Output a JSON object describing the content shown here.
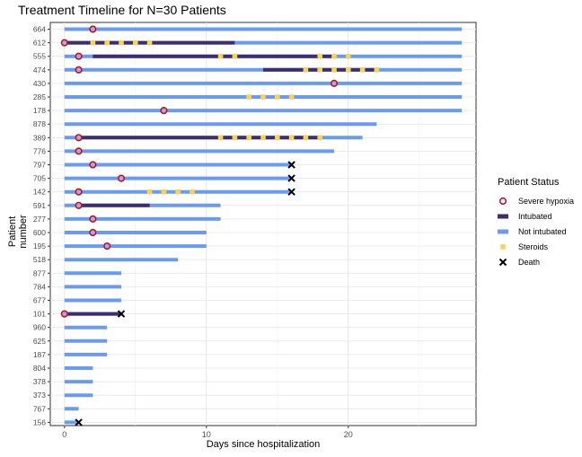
{
  "chart_data": {
    "type": "timeline",
    "title": "Treatment Timeline for N=30 Patients",
    "xlabel": "Days since hospitalization",
    "ylabel": "Patient\nnumber",
    "xlim": [
      -1,
      29
    ],
    "x_ticks": [
      0,
      10,
      20
    ],
    "grid": true,
    "legend": {
      "title": "Patient Status",
      "position": "right",
      "items": [
        {
          "key": "hypoxia",
          "label": "Severe hypoxia",
          "color": "#b2182b",
          "shape": "open-circle"
        },
        {
          "key": "intubated",
          "label": "Intubated",
          "color": "#3b2c73",
          "shape": "bar"
        },
        {
          "key": "not_intubated",
          "label": "Not intubated",
          "color": "#6a9bf2",
          "shape": "bar"
        },
        {
          "key": "steroids",
          "label": "Steroids",
          "color": "#f7d35a",
          "shape": "square"
        },
        {
          "key": "death",
          "label": "Death",
          "color": "#000000",
          "shape": "x"
        }
      ]
    },
    "patients": [
      {
        "id": "664",
        "end": 28,
        "intubated": [],
        "hypoxia": 2,
        "steroids": [],
        "death": null
      },
      {
        "id": "612",
        "end": 28,
        "intubated": [
          [
            0,
            12
          ]
        ],
        "hypoxia": 0,
        "steroids": [
          2,
          3,
          4,
          5,
          6
        ],
        "death": null
      },
      {
        "id": "555",
        "end": 28,
        "intubated": [
          [
            2,
            19
          ]
        ],
        "hypoxia": 1,
        "steroids": [
          11,
          12,
          18,
          19,
          20
        ],
        "death": null
      },
      {
        "id": "474",
        "end": 28,
        "intubated": [
          [
            14,
            22
          ]
        ],
        "hypoxia": 1,
        "steroids": [
          17,
          18,
          19,
          20,
          21,
          22
        ],
        "death": null
      },
      {
        "id": "430",
        "end": 28,
        "intubated": [],
        "hypoxia": 19,
        "steroids": [],
        "death": null
      },
      {
        "id": "285",
        "end": 28,
        "intubated": [],
        "hypoxia": null,
        "steroids": [
          13,
          14,
          15,
          16
        ],
        "death": null
      },
      {
        "id": "178",
        "end": 28,
        "intubated": [],
        "hypoxia": 7,
        "steroids": [],
        "death": null
      },
      {
        "id": "878",
        "end": 22,
        "intubated": [],
        "hypoxia": null,
        "steroids": [],
        "death": null
      },
      {
        "id": "389",
        "end": 21,
        "intubated": [
          [
            1,
            18
          ]
        ],
        "hypoxia": 1,
        "steroids": [
          11,
          12,
          13,
          14,
          15,
          16,
          17,
          18
        ],
        "death": null
      },
      {
        "id": "776",
        "end": 19,
        "intubated": [],
        "hypoxia": 1,
        "steroids": [],
        "death": null
      },
      {
        "id": "797",
        "end": 16,
        "intubated": [],
        "hypoxia": 2,
        "steroids": [],
        "death": 16
      },
      {
        "id": "705",
        "end": 16,
        "intubated": [],
        "hypoxia": 4,
        "steroids": [],
        "death": 16
      },
      {
        "id": "142",
        "end": 16,
        "intubated": [],
        "hypoxia": 1,
        "steroids": [
          6,
          7,
          8,
          9
        ],
        "death": 16
      },
      {
        "id": "591",
        "end": 11,
        "intubated": [
          [
            1,
            6
          ]
        ],
        "hypoxia": 1,
        "steroids": [],
        "death": null
      },
      {
        "id": "277",
        "end": 11,
        "intubated": [],
        "hypoxia": 2,
        "steroids": [],
        "death": null
      },
      {
        "id": "600",
        "end": 10,
        "intubated": [],
        "hypoxia": 2,
        "steroids": [],
        "death": null
      },
      {
        "id": "195",
        "end": 10,
        "intubated": [],
        "hypoxia": 3,
        "steroids": [],
        "death": null
      },
      {
        "id": "518",
        "end": 8,
        "intubated": [],
        "hypoxia": null,
        "steroids": [],
        "death": null
      },
      {
        "id": "877",
        "end": 4,
        "intubated": [],
        "hypoxia": null,
        "steroids": [],
        "death": null
      },
      {
        "id": "784",
        "end": 4,
        "intubated": [],
        "hypoxia": null,
        "steroids": [],
        "death": null
      },
      {
        "id": "677",
        "end": 4,
        "intubated": [],
        "hypoxia": null,
        "steroids": [],
        "death": null
      },
      {
        "id": "101",
        "end": 4,
        "intubated": [
          [
            0,
            4
          ]
        ],
        "hypoxia": 0,
        "steroids": [],
        "death": 4
      },
      {
        "id": "960",
        "end": 3,
        "intubated": [],
        "hypoxia": null,
        "steroids": [],
        "death": null
      },
      {
        "id": "625",
        "end": 3,
        "intubated": [],
        "hypoxia": null,
        "steroids": [],
        "death": null
      },
      {
        "id": "187",
        "end": 3,
        "intubated": [],
        "hypoxia": null,
        "steroids": [],
        "death": null
      },
      {
        "id": "804",
        "end": 2,
        "intubated": [],
        "hypoxia": null,
        "steroids": [],
        "death": null
      },
      {
        "id": "378",
        "end": 2,
        "intubated": [],
        "hypoxia": null,
        "steroids": [],
        "death": null
      },
      {
        "id": "373",
        "end": 2,
        "intubated": [],
        "hypoxia": null,
        "steroids": [],
        "death": null
      },
      {
        "id": "767",
        "end": 1,
        "intubated": [],
        "hypoxia": null,
        "steroids": [],
        "death": null
      },
      {
        "id": "156",
        "end": 1,
        "intubated": [],
        "hypoxia": null,
        "steroids": [],
        "death": 1
      }
    ]
  }
}
